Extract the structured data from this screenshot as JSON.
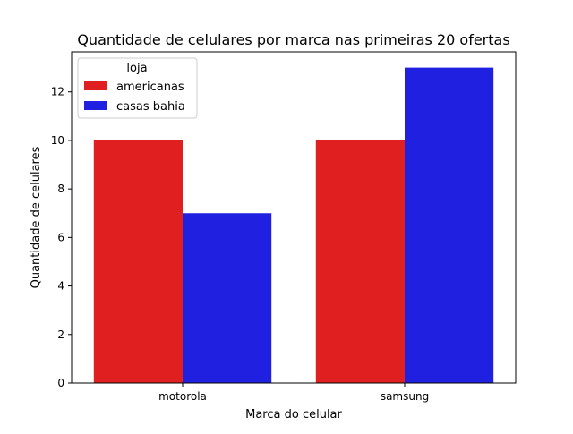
{
  "chart_data": {
    "type": "bar",
    "title": "Quantidade de celulares por marca nas primeiras 20 ofertas",
    "xlabel": "Marca do celular",
    "ylabel": "Quantidade de celulares",
    "categories": [
      "motorola",
      "samsung"
    ],
    "series": [
      {
        "name": "americanas",
        "values": [
          10,
          10
        ],
        "color": "#e02020"
      },
      {
        "name": "casas bahia",
        "values": [
          7,
          13
        ],
        "color": "#2020e0"
      }
    ],
    "ylim": [
      0,
      13.65
    ],
    "yticks": [
      0,
      2,
      4,
      6,
      8,
      10,
      12
    ],
    "grid": false,
    "legend": {
      "title": "loja",
      "placement": "top-left"
    }
  }
}
